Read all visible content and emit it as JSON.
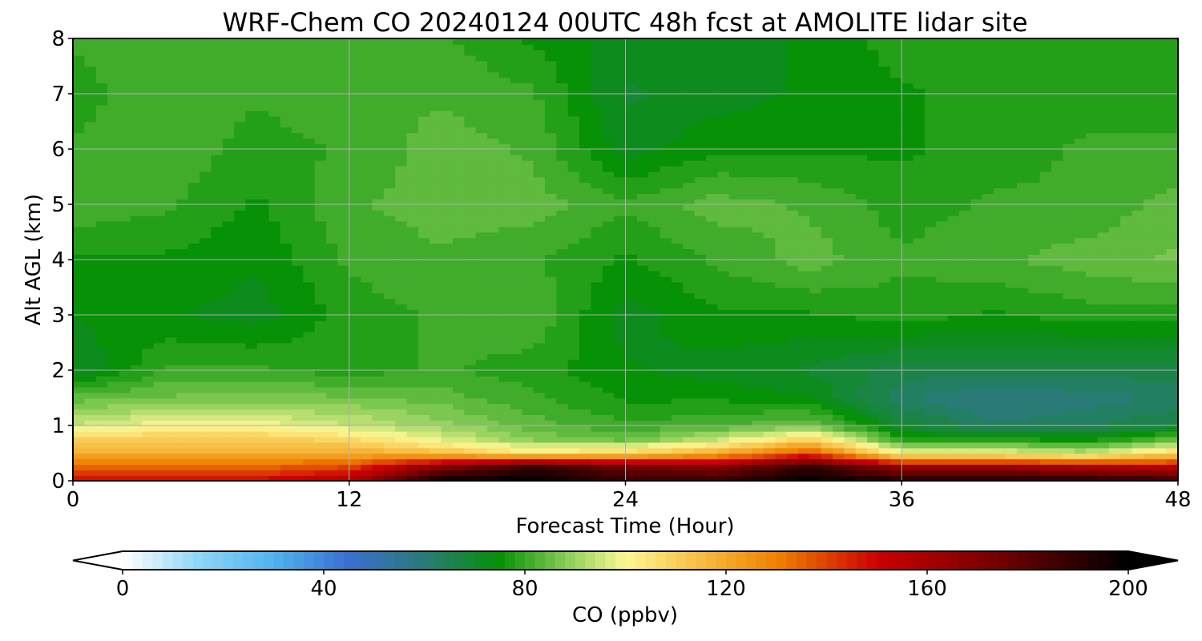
{
  "chart_data": {
    "type": "heatmap",
    "title": "WRF-Chem CO  20240124 00UTC 48h fcst at AMOLITE lidar site",
    "xlabel": "Forecast Time (Hour)",
    "ylabel": "Alt AGL (km)",
    "xlim": [
      0,
      48
    ],
    "ylim": [
      0,
      8
    ],
    "x_ticks": [
      0,
      12,
      24,
      36,
      48
    ],
    "y_ticks": [
      0,
      1,
      2,
      3,
      4,
      5,
      6,
      7,
      8
    ],
    "grid": true,
    "x": [
      0,
      4,
      8,
      12,
      16,
      20,
      24,
      28,
      32,
      36,
      40,
      44,
      48
    ],
    "y": [
      0,
      0.25,
      0.5,
      0.75,
      1,
      1.5,
      2,
      3,
      4,
      5,
      6,
      7,
      8
    ],
    "z": [
      [
        150,
        150,
        150,
        160,
        200,
        200,
        190,
        190,
        200,
        195,
        195,
        195,
        190
      ],
      [
        135,
        135,
        135,
        140,
        170,
        190,
        175,
        170,
        190,
        165,
        165,
        160,
        155
      ],
      [
        118,
        120,
        120,
        120,
        115,
        105,
        110,
        120,
        140,
        100,
        100,
        95,
        110
      ],
      [
        110,
        112,
        112,
        108,
        98,
        88,
        85,
        95,
        110,
        78,
        78,
        75,
        85
      ],
      [
        95,
        100,
        100,
        95,
        90,
        84,
        80,
        82,
        86,
        70,
        62,
        64,
        68
      ],
      [
        84,
        86,
        87,
        86,
        84,
        80,
        76,
        76,
        74,
        62,
        58,
        60,
        62
      ],
      [
        70,
        80,
        80,
        78,
        80,
        78,
        74,
        72,
        70,
        66,
        66,
        66,
        66
      ],
      [
        74,
        74,
        72,
        78,
        80,
        82,
        72,
        76,
        76,
        78,
        76,
        78,
        78
      ],
      [
        76,
        76,
        74,
        80,
        82,
        80,
        76,
        80,
        84,
        80,
        82,
        84,
        86
      ],
      [
        82,
        80,
        76,
        82,
        84,
        84,
        80,
        84,
        82,
        78,
        80,
        80,
        84
      ],
      [
        80,
        82,
        78,
        80,
        84,
        82,
        72,
        76,
        76,
        76,
        78,
        80,
        80
      ],
      [
        78,
        82,
        80,
        82,
        82,
        80,
        70,
        72,
        74,
        76,
        78,
        78,
        78
      ],
      [
        80,
        82,
        80,
        82,
        80,
        76,
        72,
        72,
        74,
        78,
        78,
        78,
        78
      ]
    ],
    "colorbar": {
      "label": "CO  (ppbv)",
      "min": 0,
      "max": 200,
      "ticks": [
        0,
        40,
        80,
        120,
        160,
        200
      ],
      "extend": "both",
      "colormap_stops": [
        {
          "value": 0,
          "color": "#ffffff"
        },
        {
          "value": 15,
          "color": "#8fd6f7"
        },
        {
          "value": 30,
          "color": "#4fb4ef"
        },
        {
          "value": 45,
          "color": "#3a6fd0"
        },
        {
          "value": 60,
          "color": "#2a7a78"
        },
        {
          "value": 75,
          "color": "#069106"
        },
        {
          "value": 88,
          "color": "#86cc56"
        },
        {
          "value": 100,
          "color": "#fdf894"
        },
        {
          "value": 112,
          "color": "#f8c850"
        },
        {
          "value": 130,
          "color": "#f08200"
        },
        {
          "value": 150,
          "color": "#cc0000"
        },
        {
          "value": 175,
          "color": "#700000"
        },
        {
          "value": 200,
          "color": "#000000"
        }
      ]
    }
  }
}
